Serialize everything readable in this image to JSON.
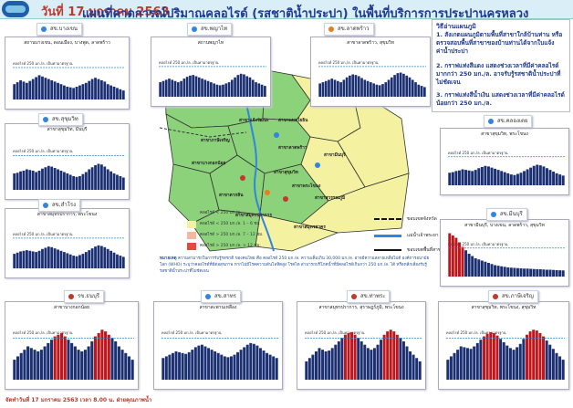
{
  "header": {
    "title_main": "แผนที่คาดการณ์ปริมาณคลอไรด์ (รสชาติน้ำประปา) ในพื้นที่บริการการประปานครหลวง",
    "title_date": "วันที่ 17 มกราคม 2563"
  },
  "notes": {
    "heading": "วิธีอ่านแผนภูมิ",
    "items": [
      "1. สังเกตแผนภูมิตามพื้นที่สาขาใกล้บ้านท่าน หรือตรวจสอบพื้นที่สาขาของบ้านท่านได้จากใบแจ้งค่าน้ำประปา",
      "2. กราฟแท่งสีแดง แสดงช่วงเวลาที่มีค่าคลอไรด์มากกว่า 250 มก./ล. อาจรับรู้รสชาติน้ำประปาที่ไม่ชัดเจน",
      "3. กราฟแท่งสีน้ำเงิน แสดงช่วงเวลาที่มีค่าคลอไรด์น้อยกว่า 250 มก./ล."
    ]
  },
  "panels": [
    {
      "id": "bangkhen",
      "tag": "สข.บางเขน",
      "dot": "#2e86de",
      "title": "สถานบางเขน, ดอนเมือง, บางพูด, ลาดพร้าว",
      "std": "คลอไรด์ 250 มก./ล. เป็นค่ามาตรฐาน",
      "values": [
        120,
        135,
        150,
        140,
        130,
        145,
        160,
        175,
        190,
        180,
        170,
        160,
        150,
        140,
        130,
        120,
        110,
        100,
        95,
        90,
        100,
        110,
        120,
        130,
        145,
        160,
        170,
        160,
        150,
        140,
        120,
        110,
        100,
        90,
        80,
        70
      ]
    },
    {
      "id": "phayathai",
      "tag": "สข.พญาไท",
      "dot": "#2e86de",
      "title": "สถานพญาไท",
      "std": "คลอไรด์ 250 มก./ล. เป็นค่ามาตรฐาน",
      "values": [
        120,
        130,
        140,
        150,
        140,
        130,
        120,
        130,
        150,
        165,
        175,
        180,
        170,
        160,
        150,
        140,
        130,
        120,
        110,
        100,
        95,
        100,
        110,
        120,
        140,
        160,
        180,
        190,
        185,
        170,
        160,
        140,
        120,
        110,
        100,
        90
      ]
    },
    {
      "id": "latprao",
      "tag": "สข.ลาดพร้าว",
      "dot": "#e67e22",
      "title": "สาขาลาดพร้าว, สุขุมวิท",
      "std": "คลอไรด์ 250 มก./ล. เป็นค่ามาตรฐาน",
      "values": [
        110,
        120,
        130,
        140,
        150,
        140,
        130,
        120,
        140,
        160,
        175,
        185,
        180,
        170,
        155,
        140,
        130,
        120,
        110,
        100,
        95,
        105,
        120,
        140,
        160,
        180,
        195,
        200,
        190,
        175,
        160,
        140,
        120,
        100,
        90,
        80
      ]
    },
    {
      "id": "sukhumvit",
      "tag": "สข.สุขุมวิท",
      "dot": "#2e86de",
      "title": "สาขาสุขุมวิท, มีนบุรี",
      "std": "คลอไรด์ 250 มก./ล. เป็นค่ามาตรฐาน",
      "values": [
        120,
        125,
        135,
        140,
        150,
        145,
        140,
        130,
        140,
        155,
        165,
        175,
        170,
        160,
        150,
        140,
        130,
        120,
        110,
        100,
        95,
        100,
        115,
        130,
        150,
        165,
        180,
        190,
        185,
        170,
        150,
        135,
        120,
        110,
        100,
        90
      ]
    },
    {
      "id": "khlongtoei",
      "tag": "สข.คลองเตย",
      "dot": "#2e86de",
      "title": "สาขาสุขุมวิท, พระโขนง",
      "std": "คลอไรด์ 250 มก./ล. เป็นค่ามาตรฐาน",
      "values": [
        110,
        115,
        125,
        130,
        140,
        135,
        130,
        125,
        135,
        150,
        160,
        170,
        165,
        155,
        145,
        135,
        125,
        115,
        105,
        95,
        90,
        100,
        110,
        125,
        140,
        155,
        170,
        180,
        175,
        165,
        150,
        135,
        120,
        105,
        95,
        85
      ]
    },
    {
      "id": "samrong",
      "tag": "สข.สำโรง",
      "dot": "#2e86de",
      "title": "สาขาสมุทรปราการ, พระโขนง",
      "std": "คลอไรด์ 250 มก./ล. เป็นค่ามาตรฐาน",
      "values": [
        120,
        130,
        140,
        145,
        150,
        145,
        140,
        135,
        145,
        160,
        170,
        180,
        175,
        165,
        155,
        145,
        135,
        125,
        115,
        105,
        100,
        110,
        120,
        135,
        150,
        165,
        180,
        190,
        185,
        175,
        160,
        145,
        130,
        115,
        105,
        95
      ]
    },
    {
      "id": "minburi",
      "tag": "สข.มีนบุรี",
      "dot": "#2e86de",
      "title": "สาขามีนบุรี, บางเขน, ลาดพร้าว, สุขุมวิท",
      "std": "คลอไรด์ 250 มก./ล. เป็นค่ามาตรฐาน",
      "values": [
        380,
        360,
        340,
        300,
        260,
        230,
        200,
        180,
        160,
        150,
        140,
        130,
        120,
        110,
        100,
        95,
        90,
        85,
        80,
        78,
        76,
        74,
        72,
        70,
        70,
        68,
        66,
        65,
        64,
        62,
        60,
        60,
        58,
        56,
        55,
        54
      ]
    },
    {
      "id": "thonburi",
      "tag": "รข.ธนบุรี",
      "dot": "#c0392b",
      "title": "สาขาบางกอกน้อย",
      "std": "คลอไรด์ 250 มก./ล. เป็นค่ามาตรฐาน",
      "values": [
        120,
        140,
        160,
        180,
        200,
        190,
        180,
        170,
        180,
        200,
        220,
        240,
        260,
        270,
        280,
        260,
        240,
        220,
        200,
        180,
        170,
        180,
        200,
        230,
        260,
        280,
        300,
        290,
        270,
        250,
        230,
        200,
        180,
        160,
        140,
        120
      ]
    },
    {
      "id": "sathorn",
      "tag": "สข.สาทร",
      "dot": "#2e86de",
      "title": "สาขาสะพานเหลือง",
      "std": "คลอไรด์ 250 มก./ล. เป็นค่ามาตรฐาน",
      "values": [
        130,
        140,
        150,
        160,
        170,
        165,
        160,
        155,
        165,
        180,
        195,
        205,
        210,
        200,
        190,
        180,
        170,
        160,
        150,
        140,
        135,
        140,
        150,
        165,
        180,
        195,
        210,
        220,
        215,
        205,
        190,
        175,
        160,
        150,
        140,
        130
      ]
    },
    {
      "id": "thaphra",
      "tag": "สข.ท่าพระ",
      "dot": "#c0392b",
      "title": "สาขาสมุทรปราการ, สุราษฎร์ภูมิ, พระโขนง",
      "std": "คลอไรด์ 250 มก./ล. เป็นค่ามาตรฐาน",
      "values": [
        110,
        130,
        150,
        170,
        190,
        180,
        170,
        175,
        190,
        210,
        230,
        250,
        270,
        280,
        285,
        270,
        250,
        230,
        210,
        190,
        180,
        190,
        210,
        240,
        270,
        290,
        300,
        290,
        270,
        250,
        230,
        200,
        170,
        150,
        130,
        110
      ]
    },
    {
      "id": "bangna",
      "tag": "สข.ภาษีเจริญ",
      "dot": "#c0392b",
      "title": "สาขาสุขุมวิท, พระโขนง, สุขุมวิท",
      "std": "คลอไรด์ 250 มก./ล. เป็นค่ามาตรฐาน",
      "values": [
        120,
        140,
        160,
        180,
        200,
        195,
        190,
        185,
        200,
        220,
        240,
        260,
        275,
        285,
        280,
        265,
        245,
        225,
        205,
        190,
        180,
        195,
        215,
        245,
        270,
        290,
        300,
        295,
        280,
        260,
        235,
        210,
        185,
        160,
        140,
        120
      ]
    }
  ],
  "map": {
    "districts": [
      "สาขาบางบัวทอง",
      "สาขาแจ้งวัฒนะ",
      "สาขาประชาชื่น",
      "สาขาพหลโยธิน",
      "สาขาบางเขน",
      "สาขามีนบุรี",
      "สาขาลาดพร้าว",
      "สาขาบางกอกน้อย",
      "สาขาสุขุมวิท",
      "สาขาพระโขนง",
      "สาขาสุวรรณภูมิ",
      "สาขาสมุทรปราการ",
      "สาขาราษฎร์บูรณะ",
      "สาขาภาษีเจริญ",
      "สาขาตากสิน",
      "สาขาบางพลัด",
      "สาขาพญาไท",
      "สาขานนทบุรี",
      "สาขาสมุทรสาคร"
    ],
    "legend": [
      {
        "color": "#8bd27a",
        "label": "คลอไรด์ < 250 มก./ล."
      },
      {
        "color": "#f4f1a0",
        "label": "คลอไรด์ < 250 มก./ล. 1 – 6 ชม."
      },
      {
        "color": "#f4b7a0",
        "label": "คลอไรด์ > 250 มก./ล. 7 – 12 ชม."
      },
      {
        "color": "#e8463f",
        "label": "คลอไรด์ > 250 มก./ล. > 12 ชม."
      }
    ],
    "boundaries": [
      {
        "style": "dashed",
        "label": "ขอบเขตจังหวัด"
      },
      {
        "style": "river",
        "label": "แม่น้ำเจ้าพระยา"
      },
      {
        "style": "solid",
        "label": "ขอบเขตพื้นที่สาขา"
      }
    ]
  },
  "bottom_note": {
    "lead": "หมายเหตุ",
    "text": "ความสามารถในการรับรู้รสชาติ ของคนไทย คือ คลอไรด์ 250 มก./ล. ความเค็มเกิน 30,000 มก./ล. อาจมีความสลายเหลือไม่ดี องค์การอนามัยโลก (WHO) ระบุว่าคลอไรด์ที่มีต่อสุขภาพ หากไม่มีโรคความดันโลหิตสูง โรคไต สามารถบริโภคน้ำที่มีคลอไรด์เกินกว่า 250 มก./ล. ได้ หรือหลีกเลี่ยงรับรู้รสชาติน้ำประปาที่ไม่ชัดเจน"
  },
  "footer": {
    "text": "จัดทำวันที่ 17 มกราคม 2563 เวลา 8.00 น.  ฝ่ายคุณภาพน้ำ"
  }
}
